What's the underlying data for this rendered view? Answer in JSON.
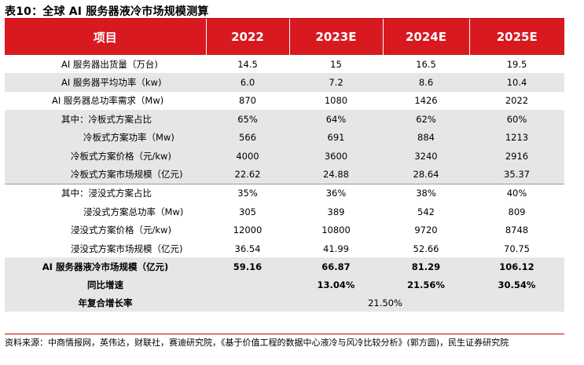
{
  "title": "表10：全球 AI 服务器液冷市场规模测算",
  "header": [
    "项目",
    "2022",
    "2023E",
    "2024E",
    "2025E"
  ],
  "rows": [
    {
      "label": "AI 服务器出货量（万台)",
      "values": [
        "14.5",
        "15",
        "16.5",
        "19.5"
      ]
    },
    {
      "label": "AI 服务器平均功率（kw)",
      "values": [
        "6.0",
        "7.2",
        "8.6",
        "10.4"
      ]
    },
    {
      "label": "AI 服务器总功率需求（Mw)",
      "values": [
        "870",
        "1080",
        "1426",
        "2022"
      ]
    },
    {
      "label": "其中：冷板式方案占比",
      "values": [
        "65%",
        "64%",
        "62%",
        "60%"
      ]
    },
    {
      "label": "冷板式方案功率（Mw)",
      "values": [
        "566",
        "691",
        "884",
        "1213"
      ]
    },
    {
      "label": "冷板式方案价格（元/kw)",
      "values": [
        "4000",
        "3600",
        "3240",
        "2916"
      ]
    },
    {
      "label": "冷板式方案市场规模（亿元)",
      "values": [
        "22.62",
        "24.88",
        "28.64",
        "35.37"
      ]
    },
    {
      "label": "其中：浸没式方案占比",
      "values": [
        "35%",
        "36%",
        "38%",
        "40%"
      ]
    },
    {
      "label": "浸没式方案总功率（Mw)",
      "values": [
        "305",
        "389",
        "542",
        "809"
      ]
    },
    {
      "label": "浸没式方案价格（元/kw)",
      "values": [
        "12000",
        "10800",
        "9720",
        "8748"
      ]
    },
    {
      "label": "浸没式方案市场规模（亿元)",
      "values": [
        "36.54",
        "41.99",
        "52.66",
        "70.75"
      ]
    },
    {
      "label": "AI 服务器液冷市场规模（亿元)",
      "values": [
        "59.16",
        "66.87",
        "81.29",
        "106.12"
      ]
    },
    {
      "label": "同比增速",
      "values": [
        "",
        "13.04%",
        "21.56%",
        "30.54%"
      ]
    }
  ],
  "cagr": {
    "label": "年复合增长率",
    "value": "21.50%"
  },
  "source": "资料来源：中商情报网，英伟达，财联社，赛迪研究院，《基于价值工程的数据中心液冷与风冷比较分析》(郭方圆)，民生证券研究院"
}
